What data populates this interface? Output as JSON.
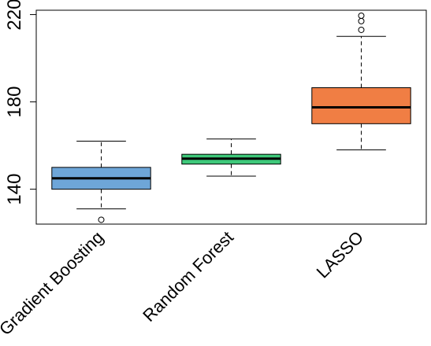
{
  "chart_data": {
    "type": "boxplot",
    "title": "",
    "xlabel": "",
    "ylabel": "",
    "ylim": [
      124,
      222
    ],
    "yticks": [
      140,
      180,
      220
    ],
    "grid": false,
    "categories": [
      "Gradient Boosting",
      "Random Forest",
      "LASSO"
    ],
    "boxes": [
      {
        "name": "Gradient Boosting",
        "color": "#6ea6d8",
        "whisker_low": 131,
        "q1": 140,
        "median": 145,
        "q3": 150,
        "whisker_high": 162,
        "outliers": [
          126
        ]
      },
      {
        "name": "Random Forest",
        "color": "#3ec87a",
        "whisker_low": 146,
        "q1": 151.5,
        "median": 154,
        "q3": 156,
        "whisker_high": 163,
        "outliers": []
      },
      {
        "name": "LASSO",
        "color": "#f07e44",
        "whisker_low": 158,
        "q1": 170,
        "median": 177.5,
        "q3": 186.5,
        "whisker_high": 210,
        "outliers": [
          213,
          217,
          219.5
        ]
      }
    ]
  }
}
